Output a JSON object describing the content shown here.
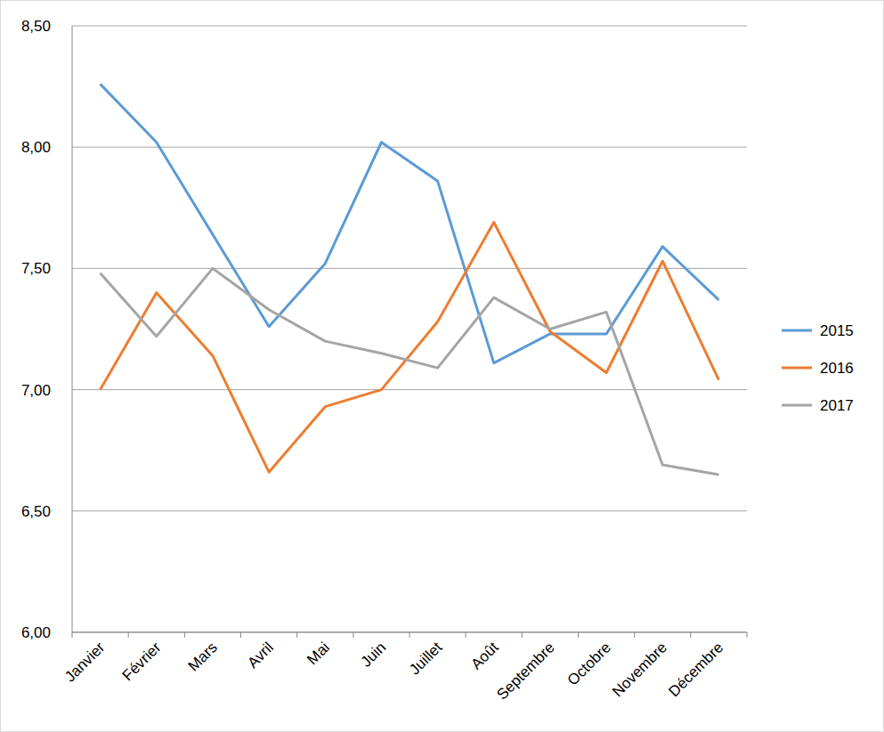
{
  "chart_data": {
    "type": "line",
    "categories": [
      "Janvier",
      "Février",
      "Mars",
      "Avril",
      "Mai",
      "Juin",
      "Juillet",
      "Août",
      "Septembre",
      "Octobre",
      "Novembre",
      "Décembre"
    ],
    "series": [
      {
        "name": "2015",
        "color": "#5b9bd5",
        "values": [
          8.26,
          8.02,
          7.64,
          7.26,
          7.52,
          8.02,
          7.86,
          7.11,
          7.23,
          7.23,
          7.59,
          7.37
        ]
      },
      {
        "name": "2016",
        "color": "#ed7d31",
        "values": [
          7.0,
          7.4,
          7.14,
          6.66,
          6.93,
          7.0,
          7.28,
          7.69,
          7.24,
          7.07,
          7.53,
          7.04
        ]
      },
      {
        "name": "2017",
        "color": "#a5a5a5",
        "values": [
          7.48,
          7.22,
          7.5,
          7.33,
          7.2,
          7.15,
          7.09,
          7.38,
          7.25,
          7.32,
          6.69,
          6.65
        ]
      }
    ],
    "ylim": [
      6,
      8.5
    ],
    "yticks": [
      {
        "value": 6,
        "label": "6,00"
      },
      {
        "value": 6.5,
        "label": "6,50"
      },
      {
        "value": 7,
        "label": "7,00"
      },
      {
        "value": 7.5,
        "label": "7,50"
      },
      {
        "value": 8,
        "label": "8,00"
      },
      {
        "value": 8.5,
        "label": "8,50"
      }
    ],
    "grid": true,
    "legend": "right"
  }
}
